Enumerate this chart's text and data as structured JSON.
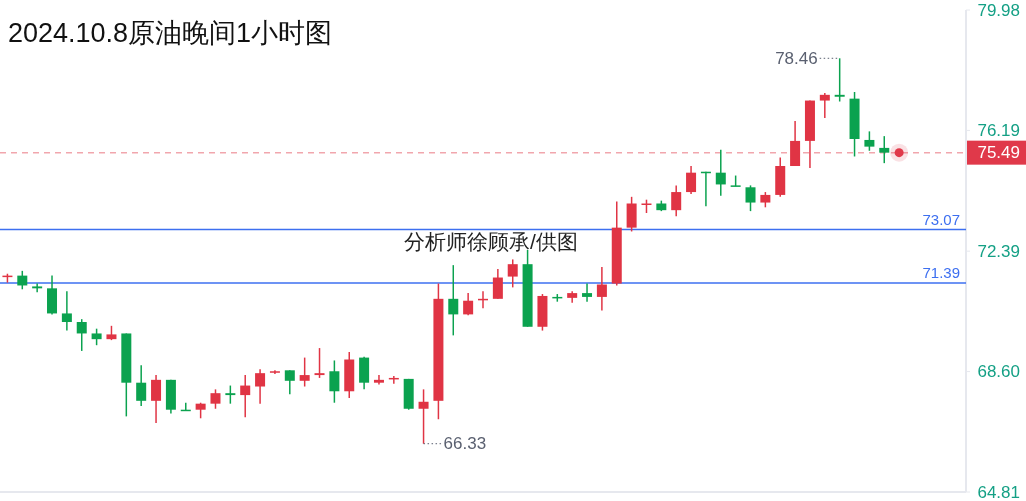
{
  "chart_data": {
    "type": "candlestick",
    "title": "2024.10.8原油晚间1小时图",
    "categories": [
      null,
      null,
      null,
      null,
      null,
      null,
      null,
      null,
      null,
      null,
      null,
      null,
      null,
      null,
      null,
      null,
      null,
      null,
      null,
      null,
      null,
      null,
      null,
      null,
      null,
      null,
      null,
      null,
      null,
      null,
      null,
      null,
      null,
      null,
      null,
      null,
      null,
      null,
      null,
      null,
      null,
      null,
      null,
      null,
      null,
      null,
      null,
      null,
      null,
      null,
      null,
      null,
      null,
      null,
      null,
      null,
      null,
      null,
      null,
      null
    ],
    "ohlc": [
      [
        71.6,
        71.68,
        71.4,
        71.62
      ],
      [
        71.62,
        71.77,
        71.19,
        71.31
      ],
      [
        71.28,
        71.37,
        71.1,
        71.22
      ],
      [
        71.22,
        71.62,
        70.4,
        70.43
      ],
      [
        70.43,
        71.13,
        69.89,
        70.16
      ],
      [
        70.16,
        70.25,
        69.25,
        69.8
      ],
      [
        69.8,
        69.95,
        69.43,
        69.62
      ],
      [
        69.62,
        70.04,
        69.59,
        69.77
      ],
      [
        69.8,
        69.8,
        67.19,
        68.25
      ],
      [
        68.25,
        68.8,
        67.52,
        67.68
      ],
      [
        67.68,
        68.49,
        66.98,
        68.34
      ],
      [
        68.34,
        68.34,
        67.28,
        67.4
      ],
      [
        67.4,
        67.62,
        67.37,
        67.37
      ],
      [
        67.4,
        67.62,
        67.13,
        67.59
      ],
      [
        67.59,
        68.04,
        67.43,
        67.92
      ],
      [
        67.92,
        68.16,
        67.59,
        67.86
      ],
      [
        67.86,
        68.49,
        67.16,
        68.16
      ],
      [
        68.13,
        68.67,
        67.59,
        68.55
      ],
      [
        68.58,
        68.64,
        68.52,
        68.61
      ],
      [
        68.64,
        68.64,
        67.89,
        68.31
      ],
      [
        68.31,
        69.04,
        68.13,
        68.49
      ],
      [
        68.49,
        69.34,
        68.4,
        68.55
      ],
      [
        68.61,
        68.95,
        67.62,
        67.98
      ],
      [
        67.98,
        69.22,
        67.77,
        68.98
      ],
      [
        69.04,
        69.07,
        68.04,
        68.25
      ],
      [
        68.25,
        68.49,
        68.19,
        68.34
      ],
      [
        68.37,
        68.46,
        68.22,
        68.4
      ],
      [
        68.37,
        68.37,
        67.4,
        67.43
      ],
      [
        67.43,
        68.04,
        66.33,
        67.65
      ],
      [
        67.68,
        71.37,
        67.1,
        70.89
      ],
      [
        70.89,
        71.95,
        69.74,
        70.4
      ],
      [
        70.4,
        71.07,
        70.37,
        70.83
      ],
      [
        70.86,
        71.13,
        70.59,
        70.89
      ],
      [
        70.89,
        71.83,
        70.89,
        71.56
      ],
      [
        71.59,
        72.13,
        71.25,
        71.98
      ],
      [
        71.98,
        72.43,
        70.01,
        70.01
      ],
      [
        70.01,
        71.04,
        69.89,
        70.98
      ],
      [
        70.95,
        71.04,
        70.8,
        70.92
      ],
      [
        70.92,
        71.13,
        70.77,
        71.07
      ],
      [
        71.07,
        71.37,
        70.8,
        70.95
      ],
      [
        70.95,
        71.89,
        70.52,
        71.34
      ],
      [
        71.37,
        73.95,
        71.31,
        73.13
      ],
      [
        73.13,
        74.1,
        73.01,
        73.89
      ],
      [
        73.86,
        74.01,
        73.59,
        73.89
      ],
      [
        73.89,
        73.98,
        73.65,
        73.68
      ],
      [
        73.68,
        74.46,
        73.49,
        74.25
      ],
      [
        74.25,
        75.07,
        74.19,
        74.86
      ],
      [
        74.89,
        74.89,
        73.8,
        74.86
      ],
      [
        74.86,
        75.58,
        74.13,
        74.49
      ],
      [
        74.46,
        74.77,
        74.43,
        74.43
      ],
      [
        74.4,
        74.46,
        73.65,
        73.92
      ],
      [
        73.92,
        74.25,
        73.77,
        74.16
      ],
      [
        74.16,
        75.34,
        74.1,
        75.07
      ],
      [
        75.07,
        76.49,
        75.07,
        75.86
      ],
      [
        75.86,
        77.13,
        75.01,
        77.13
      ],
      [
        77.13,
        77.37,
        76.58,
        77.31
      ],
      [
        77.31,
        78.46,
        77.1,
        77.25
      ],
      [
        77.19,
        77.4,
        75.37,
        75.92
      ],
      [
        75.89,
        76.16,
        75.55,
        75.68
      ],
      [
        75.64,
        76.01,
        75.16,
        75.49
      ]
    ],
    "colors": [
      "#e03444",
      "#0ba24f",
      "#0ba24f",
      "#0ba24f",
      "#0ba24f",
      "#0ba24f",
      "#0ba24f",
      "#e03444",
      "#0ba24f",
      "#0ba24f",
      "#e03444",
      "#0ba24f",
      "#0ba24f",
      "#e03444",
      "#e03444",
      "#0ba24f",
      "#e03444",
      "#e03444",
      "#e03444",
      "#0ba24f",
      "#e03444",
      "#e03444",
      "#0ba24f",
      "#e03444",
      "#0ba24f",
      "#e03444",
      "#e03444",
      "#0ba24f",
      "#e03444",
      "#e03444",
      "#0ba24f",
      "#e03444",
      "#e03444",
      "#e03444",
      "#e03444",
      "#0ba24f",
      "#e03444",
      "#0ba24f",
      "#e03444",
      "#0ba24f",
      "#e03444",
      "#e03444",
      "#e03444",
      "#e03444",
      "#0ba24f",
      "#e03444",
      "#e03444",
      "#0ba24f",
      "#0ba24f",
      "#0ba24f",
      "#0ba24f",
      "#e03444",
      "#e03444",
      "#e03444",
      "#e03444",
      "#e03444",
      "#0ba24f",
      "#0ba24f",
      "#0ba24f",
      "#0ba24f"
    ],
    "ylim": [
      64.81,
      79.98
    ],
    "yticks": [
      79.98,
      76.19,
      72.39,
      {
        "value": 68.6,
        "label": "68.60"
      },
      64.81
    ],
    "tick_labels": "y",
    "ref_lines": [
      {
        "axis": "y",
        "value": 73.07,
        "label": "73.07",
        "color": "#3d6ff0"
      },
      {
        "axis": "y",
        "value": 71.39,
        "label": "71.39",
        "color": "#3d6ff0"
      },
      {
        "axis": "y",
        "value": 75.49,
        "label": "75.49",
        "color": "#e0394a",
        "line_style": "dashed"
      }
    ],
    "annotations": [
      "78.46",
      "66.33",
      "分析师徐顾承/供图"
    ]
  }
}
